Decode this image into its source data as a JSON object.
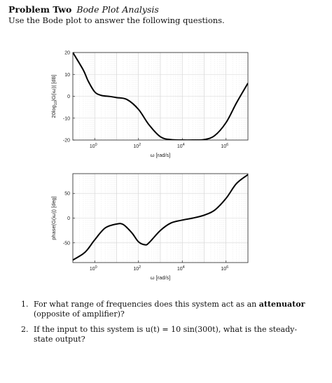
{
  "header": {
    "problem_label": "Problem Two",
    "problem_subtitle": "Bode Plot Analysis",
    "instruction": "Use the Bode plot to answer the following questions."
  },
  "chart_data": [
    {
      "type": "line",
      "title": "",
      "xlabel": "ω [rad/s]",
      "ylabel": "20log10|G(iω)| [dB]",
      "xscale": "log",
      "xlim": [
        0.1,
        10000000
      ],
      "ylim": [
        -20,
        20
      ],
      "xticks": [
        1,
        100,
        10000,
        1000000
      ],
      "xtick_labels": [
        "10^0",
        "10^2",
        "10^4",
        "10^6"
      ],
      "yticks": [
        -20,
        -10,
        0,
        10,
        20
      ],
      "ytick_labels": [
        "-20",
        "-10",
        "0",
        "10",
        "20"
      ],
      "grid": true,
      "series": [
        {
          "x": [
            0.1,
            0.3,
            0.5,
            1,
            2,
            5,
            10,
            30,
            100,
            300,
            1000,
            3000,
            10000,
            30000,
            100000,
            300000,
            1000000,
            3000000,
            10000000
          ],
          "y": [
            20,
            12,
            7,
            2,
            0.4,
            -0.1,
            -0.6,
            -1.5,
            -6,
            -13,
            -18.5,
            -19.8,
            -20,
            -20,
            -19.8,
            -18,
            -12,
            -3,
            6
          ]
        }
      ]
    },
    {
      "type": "line",
      "title": "",
      "xlabel": "ω [rad/s]",
      "ylabel": "phase(G(iω)) [deg]",
      "xscale": "log",
      "xlim": [
        0.1,
        10000000
      ],
      "ylim": [
        -90,
        90
      ],
      "xticks": [
        1,
        100,
        10000,
        1000000
      ],
      "xtick_labels": [
        "10^0",
        "10^2",
        "10^4",
        "10^6"
      ],
      "yticks": [
        -50,
        0,
        50
      ],
      "ytick_labels": [
        "-50",
        "0",
        "50"
      ],
      "grid": true,
      "series": [
        {
          "x": [
            0.1,
            0.3,
            0.5,
            1,
            3,
            10,
            20,
            50,
            100,
            200,
            300,
            1000,
            3000,
            10000,
            30000,
            100000,
            300000,
            1000000,
            3000000,
            10000000
          ],
          "y": [
            -85,
            -72,
            -62,
            -44,
            -20,
            -12,
            -13,
            -30,
            -48,
            -54,
            -50,
            -25,
            -10,
            -4,
            0,
            6,
            16,
            40,
            70,
            88
          ]
        }
      ]
    }
  ],
  "questions": [
    {
      "number": "1.",
      "pre": "For what range of frequencies does this system act as an ",
      "bold": "attenuator",
      "post": " (opposite of amplifier)?"
    },
    {
      "number": "2.",
      "text": "If the input to this system is u(t) = 10 sin(300t), what is the steady-state output?"
    }
  ]
}
